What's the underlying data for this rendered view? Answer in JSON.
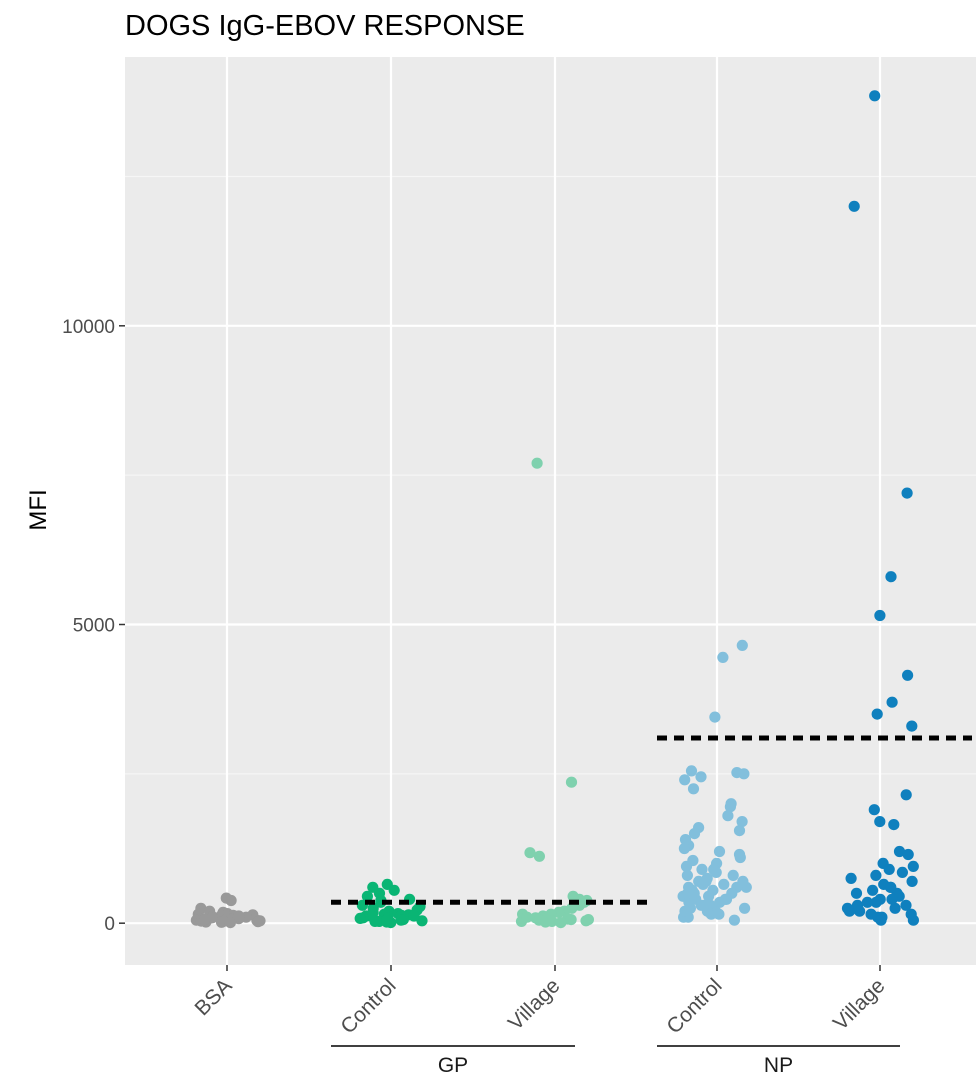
{
  "chart_data": {
    "type": "scatter",
    "subtype": "jitter strip plot",
    "title": "DOGS IgG-EBOV RESPONSE",
    "xlabel": "",
    "ylabel": "MFI",
    "ylim": [
      -700,
      14500
    ],
    "yticks": [
      0,
      5000,
      10000
    ],
    "grid": true,
    "background": "#ebebeb",
    "categories": [
      "BSA",
      "Control",
      "Village",
      "Control",
      "Village"
    ],
    "groups": [
      {
        "label": "GP",
        "categories": [
          1,
          2
        ]
      },
      {
        "label": "NP",
        "categories": [
          3,
          4
        ]
      }
    ],
    "series": [
      {
        "category": "BSA",
        "color": "#999999",
        "values": [
          420,
          380,
          250,
          200,
          180,
          160,
          150,
          140,
          130,
          120,
          110,
          100,
          95,
          90,
          85,
          80,
          75,
          70,
          65,
          60,
          55,
          50,
          45,
          40,
          35,
          30,
          25,
          20,
          15,
          10,
          120,
          90,
          60,
          40
        ]
      },
      {
        "category": "GP Control",
        "color": "#0ab574",
        "values": [
          650,
          600,
          550,
          500,
          450,
          400,
          380,
          350,
          300,
          280,
          250,
          220,
          200,
          180,
          160,
          150,
          140,
          130,
          120,
          110,
          100,
          90,
          80,
          70,
          60,
          50,
          40,
          30,
          20,
          10,
          150,
          120,
          90,
          60,
          30
        ]
      },
      {
        "category": "GP Village",
        "color": "#7fd1ae",
        "values": [
          7700,
          2360,
          1180,
          1120,
          450,
          400,
          380,
          350,
          300,
          250,
          200,
          180,
          150,
          120,
          100,
          90,
          80,
          70,
          60,
          50,
          40,
          30,
          20,
          10,
          150,
          100,
          60,
          30
        ]
      },
      {
        "category": "NP Control",
        "color": "#82bfdc",
        "values": [
          4650,
          4450,
          3450,
          2550,
          2520,
          2500,
          2450,
          2400,
          2250,
          2000,
          1950,
          1800,
          1700,
          1600,
          1550,
          1500,
          1400,
          1300,
          1250,
          1200,
          1150,
          1100,
          1050,
          1000,
          950,
          900,
          850,
          800,
          750,
          700,
          650,
          600,
          550,
          500,
          450,
          400,
          350,
          300,
          250,
          200,
          150,
          100,
          50,
          900,
          800,
          700,
          600,
          500,
          400,
          300,
          200,
          100,
          700,
          600,
          500,
          400,
          300,
          200,
          650,
          550,
          450,
          350,
          250,
          150
        ]
      },
      {
        "category": "NP Village",
        "color": "#0f80be",
        "values": [
          13850,
          12000,
          7200,
          5800,
          5150,
          4150,
          3700,
          3500,
          3300,
          2150,
          1900,
          1700,
          1650,
          1200,
          1150,
          1000,
          950,
          900,
          850,
          800,
          750,
          700,
          650,
          600,
          550,
          500,
          450,
          400,
          350,
          300,
          250,
          200,
          150,
          100,
          50,
          600,
          500,
          400,
          300,
          200,
          100,
          350,
          250,
          150,
          50
        ]
      }
    ],
    "cutoffs": [
      {
        "from_category": "Control",
        "group": "GP",
        "value": 350
      },
      {
        "from_category": "Control",
        "group": "NP",
        "value": 3100
      }
    ]
  }
}
